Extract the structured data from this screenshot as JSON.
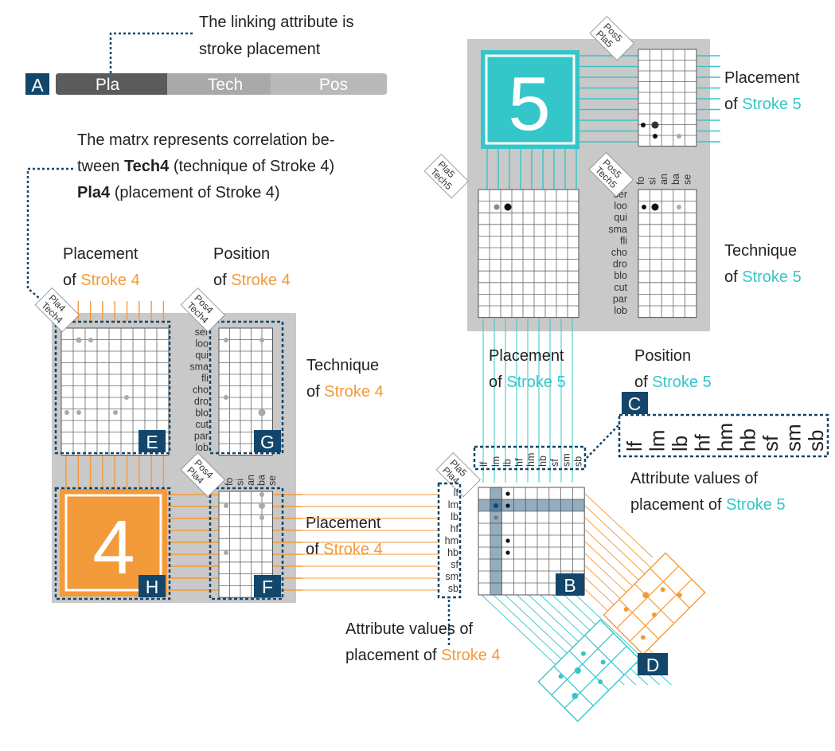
{
  "panel_a": {
    "badge": "A",
    "bar_segments": [
      "Pla",
      "Tech",
      "Pos"
    ],
    "annotation": [
      "The linking attribute is",
      "stroke placement"
    ]
  },
  "matrix_note": {
    "line1": "The matrx represents correlation be-",
    "line2_pre": "tween ",
    "line2_bold": "Tech4",
    "line2_post": " (technique of Stroke 4)",
    "line3_bold": "Pla4",
    "line3_post": " (placement of Stroke 4)"
  },
  "stroke4": {
    "number": "4",
    "accent": "Stroke 4",
    "placement_caption": "Placement",
    "position_caption": "Position",
    "technique_caption": "Technique",
    "of_word": "of",
    "header_pla_tech": [
      "Pla4",
      "Tech4"
    ],
    "header_pos_tech": [
      "Pos4",
      "Tech4"
    ],
    "header_pos_pla": [
      "Pos4",
      "Pla4"
    ],
    "badges": {
      "E": "E",
      "G": "G",
      "H": "H",
      "F": "F"
    }
  },
  "stroke5": {
    "number": "5",
    "accent": "Stroke 5",
    "placement_caption": "Placement",
    "position_caption": "Position",
    "technique_caption": "Technique",
    "of_word": "of",
    "header_pos_pla": [
      "Pos5",
      "Pla5"
    ],
    "header_pla_tech": [
      "Pla5",
      "Tech5"
    ],
    "header_pos_tech": [
      "Pos5",
      "Tech5"
    ]
  },
  "technique_values": [
    "ser",
    "loo",
    "qui",
    "sma",
    "fli",
    "cho",
    "dro",
    "blo",
    "cut",
    "par",
    "lob"
  ],
  "position_values": [
    "fo",
    "si",
    "an",
    "ba",
    "se"
  ],
  "placement_values": [
    "lf",
    "lm",
    "lb",
    "hf",
    "hm",
    "hb",
    "sf",
    "sm",
    "sb"
  ],
  "pla_pla_header": [
    "Pla5",
    "Pla4"
  ],
  "badges": {
    "B": "B",
    "C": "C",
    "D": "D"
  },
  "attr_caption_5": [
    "Attribute values of",
    "placement of "
  ],
  "attr_caption_4": [
    "Attribute values of",
    "placement of "
  ],
  "colors": {
    "orange": "#f39a3a",
    "cyan": "#35c6c9",
    "navy": "#13466b",
    "panel_gray": "#c9c9c9",
    "bar_dark": "#5b5b5b",
    "bar_light": "#a9a9a9"
  }
}
